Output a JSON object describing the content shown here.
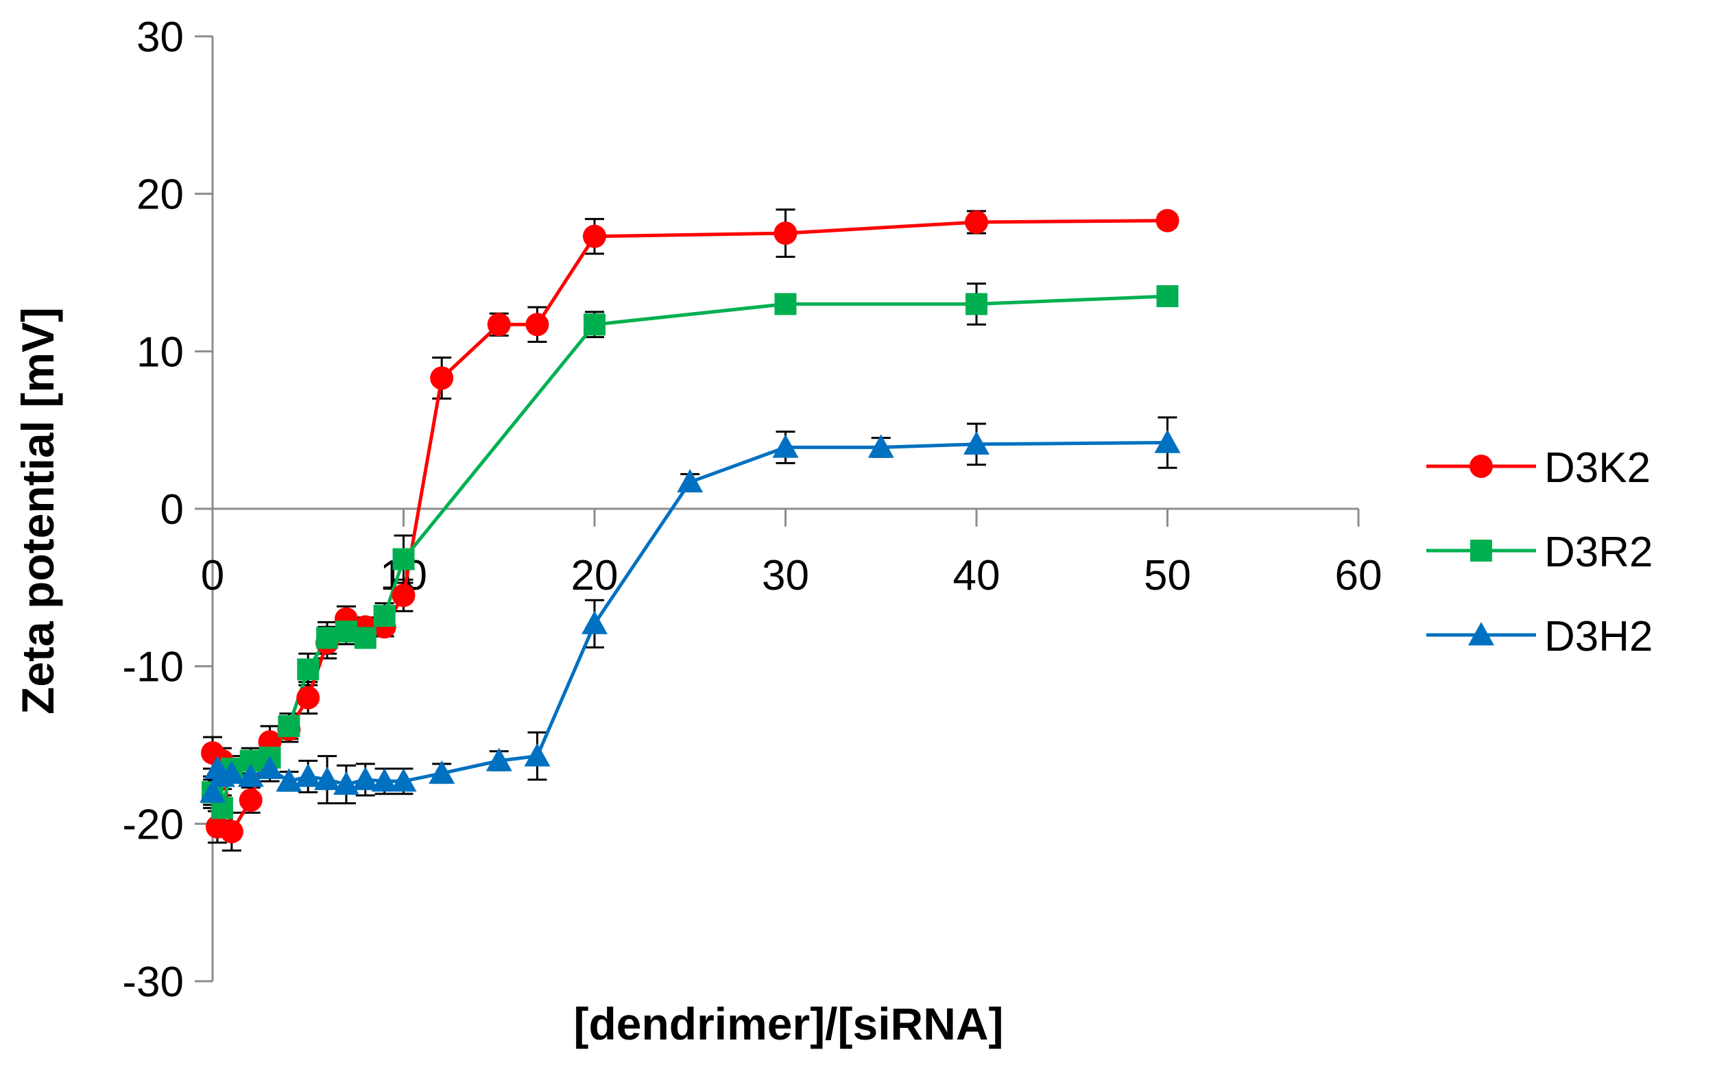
{
  "chart_data": {
    "type": "line",
    "title": "",
    "xlabel": "[dendrimer]/[siRNA]",
    "ylabel": "Zeta potential [mV]",
    "xlim": [
      0,
      60
    ],
    "ylim": [
      -30,
      30
    ],
    "xticks": [
      0,
      10,
      20,
      30,
      40,
      50,
      60
    ],
    "yticks": [
      -30,
      -20,
      -10,
      0,
      10,
      20,
      30
    ],
    "x_tick_labels": [
      "0",
      "10",
      "20",
      "30",
      "40",
      "50",
      "60"
    ],
    "y_tick_labels": [
      "-30",
      "-20",
      "-10",
      "0",
      "10",
      "20",
      "30"
    ],
    "grid": false,
    "legend_position": "right",
    "series": [
      {
        "name": "D3K2",
        "color": "#ff0000",
        "marker": "circle",
        "points": [
          {
            "x": 0,
            "y": -15.5,
            "err": 1.0
          },
          {
            "x": 0.25,
            "y": -20.2,
            "err": 1.0
          },
          {
            "x": 0.5,
            "y": -16.0,
            "err": 0.8
          },
          {
            "x": 1,
            "y": -20.5,
            "err": 1.2
          },
          {
            "x": 2,
            "y": -18.5,
            "err": 0.8
          },
          {
            "x": 3,
            "y": -14.8,
            "err": 1.0
          },
          {
            "x": 4,
            "y": -14.0,
            "err": 0.8
          },
          {
            "x": 5,
            "y": -12.0,
            "err": 1.0
          },
          {
            "x": 6,
            "y": -8.5,
            "err": 1.0
          },
          {
            "x": 7,
            "y": -7.0,
            "err": 0.8
          },
          {
            "x": 8,
            "y": -7.5,
            "err": 0.6
          },
          {
            "x": 9,
            "y": -7.5,
            "err": 0.6
          },
          {
            "x": 10,
            "y": -5.5,
            "err": 1.0
          },
          {
            "x": 12,
            "y": 8.3,
            "err": 1.3
          },
          {
            "x": 15,
            "y": 11.7,
            "err": 0.7
          },
          {
            "x": 17,
            "y": 11.7,
            "err": 1.1
          },
          {
            "x": 20,
            "y": 17.3,
            "err": 1.1
          },
          {
            "x": 30,
            "y": 17.5,
            "err": 1.5
          },
          {
            "x": 40,
            "y": 18.2,
            "err": 0.7
          },
          {
            "x": 50,
            "y": 18.3,
            "err": 0.4
          }
        ]
      },
      {
        "name": "D3R2",
        "color": "#00b050",
        "marker": "square",
        "points": [
          {
            "x": 0,
            "y": -18.0,
            "err": 1.0
          },
          {
            "x": 0.5,
            "y": -19.0,
            "err": 0.8
          },
          {
            "x": 1,
            "y": -16.5,
            "err": 0.8
          },
          {
            "x": 2,
            "y": -16.0,
            "err": 0.8
          },
          {
            "x": 3,
            "y": -15.8,
            "err": 1.0
          },
          {
            "x": 4,
            "y": -13.8,
            "err": 0.8
          },
          {
            "x": 5,
            "y": -10.2,
            "err": 1.0
          },
          {
            "x": 6,
            "y": -8.2,
            "err": 1.0
          },
          {
            "x": 7,
            "y": -7.8,
            "err": 0.8
          },
          {
            "x": 8,
            "y": -8.2,
            "err": 0.6
          },
          {
            "x": 9,
            "y": -6.8,
            "err": 0.8
          },
          {
            "x": 10,
            "y": -3.2,
            "err": 1.5
          },
          {
            "x": 20,
            "y": 11.7,
            "err": 0.8
          },
          {
            "x": 30,
            "y": 13.0,
            "err": 0.5
          },
          {
            "x": 40,
            "y": 13.0,
            "err": 1.3
          },
          {
            "x": 50,
            "y": 13.5,
            "err": 0.5
          }
        ]
      },
      {
        "name": "D3H2",
        "color": "#0070c0",
        "marker": "triangle",
        "points": [
          {
            "x": 0,
            "y": -18.0,
            "err": 0.8
          },
          {
            "x": 0.25,
            "y": -16.5,
            "err": 0.8
          },
          {
            "x": 0.5,
            "y": -17.0,
            "err": 0.8
          },
          {
            "x": 1,
            "y": -16.8,
            "err": 0.6
          },
          {
            "x": 2,
            "y": -17.0,
            "err": 0.6
          },
          {
            "x": 3,
            "y": -16.5,
            "err": 0.8
          },
          {
            "x": 4,
            "y": -17.3,
            "err": 0.6
          },
          {
            "x": 5,
            "y": -17.0,
            "err": 1.0
          },
          {
            "x": 6,
            "y": -17.2,
            "err": 1.5
          },
          {
            "x": 7,
            "y": -17.5,
            "err": 1.2
          },
          {
            "x": 8,
            "y": -17.2,
            "err": 1.0
          },
          {
            "x": 9,
            "y": -17.3,
            "err": 0.8
          },
          {
            "x": 10,
            "y": -17.3,
            "err": 0.8
          },
          {
            "x": 12,
            "y": -16.8,
            "err": 0.6
          },
          {
            "x": 15,
            "y": -16.0,
            "err": 0.6
          },
          {
            "x": 17,
            "y": -15.7,
            "err": 1.5
          },
          {
            "x": 20,
            "y": -7.3,
            "err": 1.5
          },
          {
            "x": 25,
            "y": 1.7,
            "err": 0.5
          },
          {
            "x": 30,
            "y": 3.9,
            "err": 1.0
          },
          {
            "x": 35,
            "y": 3.9,
            "err": 0.6
          },
          {
            "x": 40,
            "y": 4.1,
            "err": 1.3
          },
          {
            "x": 50,
            "y": 4.2,
            "err": 1.6
          }
        ]
      }
    ]
  }
}
